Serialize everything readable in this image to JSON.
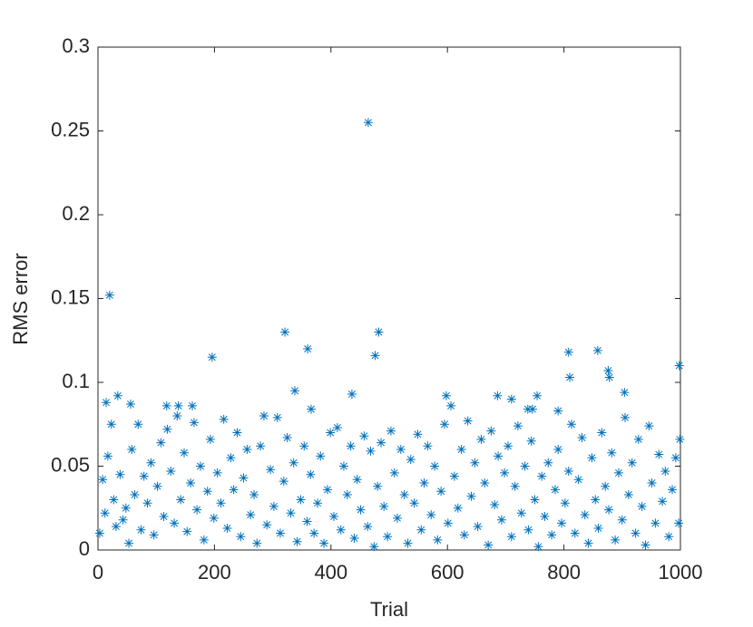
{
  "chart_data": {
    "type": "scatter",
    "x_label": "Trial",
    "y_label": "RMS error",
    "color": "#0072bd",
    "marker": "asterisk",
    "xlim": [
      0,
      1000
    ],
    "xticks": [
      0,
      200,
      400,
      600,
      800,
      1000
    ],
    "ylim": [
      0,
      0.3
    ],
    "yticks": [
      0,
      0.05,
      0.1,
      0.15,
      0.2,
      0.25,
      0.3
    ],
    "x": [
      3,
      8,
      12,
      17,
      23,
      27,
      31,
      38,
      43,
      48,
      53,
      58,
      63,
      69,
      74,
      79,
      85,
      91,
      96,
      102,
      108,
      113,
      119,
      125,
      131,
      136,
      142,
      148,
      153,
      159,
      165,
      170,
      176,
      182,
      188,
      193,
      199,
      205,
      211,
      216,
      222,
      228,
      233,
      239,
      245,
      250,
      256,
      262,
      268,
      273,
      279,
      285,
      290,
      296,
      302,
      308,
      313,
      319,
      325,
      331,
      336,
      342,
      348,
      354,
      359,
      365,
      371,
      377,
      382,
      388,
      394,
      399,
      405,
      411,
      417,
      422,
      428,
      434,
      440,
      445,
      451,
      457,
      463,
      468,
      474,
      480,
      486,
      491,
      497,
      503,
      509,
      514,
      520,
      526,
      532,
      537,
      543,
      549,
      555,
      560,
      566,
      572,
      578,
      583,
      589,
      595,
      601,
      606,
      612,
      618,
      624,
      629,
      635,
      641,
      647,
      652,
      658,
      664,
      670,
      675,
      681,
      687,
      693,
      698,
      704,
      710,
      716,
      721,
      727,
      733,
      739,
      744,
      750,
      756,
      762,
      767,
      773,
      779,
      785,
      790,
      796,
      802,
      808,
      813,
      819,
      825,
      831,
      836,
      842,
      848,
      854,
      859,
      865,
      871,
      877,
      882,
      888,
      894,
      900,
      905,
      911,
      917,
      923,
      928,
      934,
      940,
      946,
      951,
      957,
      963,
      969,
      974,
      980,
      986,
      992,
      997,
      999,
      464,
      20,
      321,
      482,
      476,
      360,
      196,
      808,
      858,
      810,
      876,
      878,
      998,
      904,
      338,
      436,
      598,
      686,
      14,
      34,
      56,
      118,
      138,
      162,
      366,
      738,
      754,
      790,
      710,
      746
    ],
    "values": [
      0.01,
      0.042,
      0.022,
      0.056,
      0.075,
      0.03,
      0.014,
      0.045,
      0.018,
      0.025,
      0.004,
      0.06,
      0.033,
      0.075,
      0.012,
      0.044,
      0.028,
      0.052,
      0.009,
      0.038,
      0.064,
      0.02,
      0.072,
      0.047,
      0.016,
      0.08,
      0.03,
      0.058,
      0.011,
      0.04,
      0.076,
      0.024,
      0.05,
      0.006,
      0.035,
      0.066,
      0.019,
      0.046,
      0.028,
      0.078,
      0.013,
      0.055,
      0.036,
      0.07,
      0.008,
      0.043,
      0.06,
      0.021,
      0.033,
      0.004,
      0.062,
      0.08,
      0.015,
      0.048,
      0.026,
      0.079,
      0.01,
      0.041,
      0.067,
      0.022,
      0.052,
      0.005,
      0.03,
      0.062,
      0.017,
      0.045,
      0.01,
      0.028,
      0.056,
      0.004,
      0.036,
      0.07,
      0.02,
      0.073,
      0.012,
      0.05,
      0.033,
      0.062,
      0.007,
      0.042,
      0.024,
      0.068,
      0.014,
      0.059,
      0.002,
      0.038,
      0.064,
      0.026,
      0.008,
      0.071,
      0.046,
      0.019,
      0.06,
      0.033,
      0.004,
      0.054,
      0.028,
      0.069,
      0.012,
      0.04,
      0.062,
      0.021,
      0.05,
      0.006,
      0.035,
      0.075,
      0.016,
      0.086,
      0.044,
      0.025,
      0.06,
      0.009,
      0.077,
      0.032,
      0.052,
      0.014,
      0.066,
      0.04,
      0.003,
      0.071,
      0.027,
      0.056,
      0.018,
      0.046,
      0.062,
      0.008,
      0.038,
      0.074,
      0.022,
      0.05,
      0.012,
      0.065,
      0.03,
      0.002,
      0.044,
      0.02,
      0.052,
      0.009,
      0.036,
      0.06,
      0.016,
      0.028,
      0.047,
      0.075,
      0.01,
      0.042,
      0.067,
      0.021,
      0.004,
      0.055,
      0.03,
      0.013,
      0.07,
      0.038,
      0.024,
      0.058,
      0.006,
      0.046,
      0.018,
      0.079,
      0.033,
      0.052,
      0.01,
      0.066,
      0.026,
      0.003,
      0.074,
      0.04,
      0.016,
      0.057,
      0.029,
      0.047,
      0.008,
      0.036,
      0.055,
      0.016,
      0.066,
      0.255,
      0.152,
      0.13,
      0.13,
      0.116,
      0.12,
      0.115,
      0.118,
      0.119,
      0.103,
      0.107,
      0.103,
      0.11,
      0.094,
      0.095,
      0.093,
      0.092,
      0.092,
      0.088,
      0.092,
      0.087,
      0.086,
      0.086,
      0.086,
      0.084,
      0.084,
      0.092,
      0.083,
      0.09,
      0.084
    ]
  }
}
